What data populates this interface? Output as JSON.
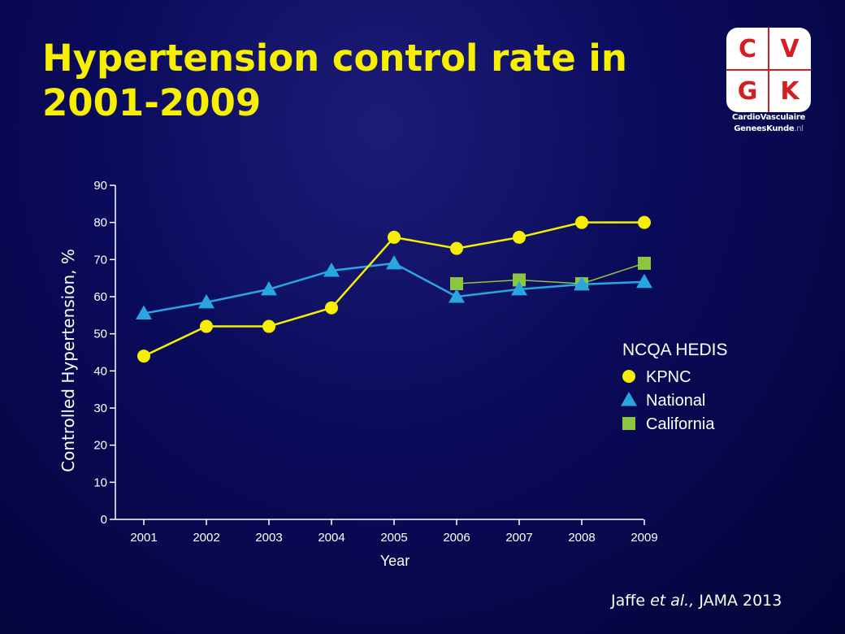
{
  "slide": {
    "title": "Hypertension control rate in 2001-2009",
    "citation_authors": "Jaffe",
    "citation_etal": "et al.,",
    "citation_journal": "JAMA 2013"
  },
  "logo": {
    "letters": [
      "C",
      "V",
      "G",
      "K"
    ],
    "line1": "CardioVasculaire",
    "line2_main": "GeneesKunde",
    "line2_suffix": ".nl"
  },
  "colors": {
    "title": "#f6ef00",
    "kpnc": "#f6ef00",
    "national": "#29a6e0",
    "california": "#8cc63f",
    "axis": "#ffffff"
  },
  "chart_data": {
    "type": "line",
    "xlabel": "Year",
    "ylabel": "Controlled Hypertension, %",
    "ylim": [
      0,
      90
    ],
    "yticks": [
      0,
      10,
      20,
      30,
      40,
      50,
      60,
      70,
      80,
      90
    ],
    "categories": [
      "2001",
      "2002",
      "2003",
      "2004",
      "2005",
      "2006",
      "2007",
      "2008",
      "2009"
    ],
    "legend_title": "NCQA HEDIS",
    "legend_position": "right",
    "grid": false,
    "series": [
      {
        "name": "KPNC",
        "marker": "circle",
        "color": "#f6ef00",
        "values": [
          44,
          52,
          52,
          57,
          76,
          73,
          76,
          80,
          80
        ]
      },
      {
        "name": "National",
        "marker": "triangle",
        "color": "#29a6e0",
        "values": [
          55.5,
          58.5,
          62,
          67,
          69,
          60,
          62,
          63.3,
          64
        ]
      },
      {
        "name": "California",
        "marker": "square",
        "color": "#8cc63f",
        "values": [
          null,
          null,
          null,
          null,
          null,
          63.5,
          64.5,
          63.5,
          69
        ]
      }
    ]
  }
}
